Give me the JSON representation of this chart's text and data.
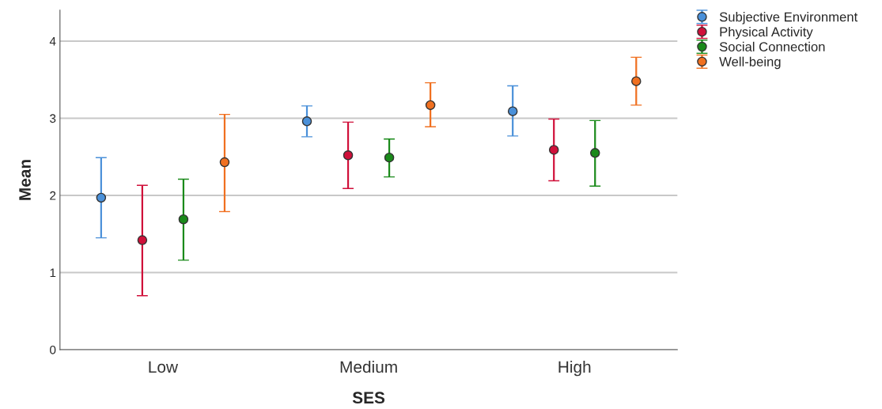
{
  "chart_data": {
    "type": "scatter",
    "xlabel": "SES",
    "ylabel": "Mean",
    "categories": [
      "Low",
      "Medium",
      "High"
    ],
    "series": [
      {
        "name": "Subjective Environment",
        "color": "#4a90d9",
        "values": [
          1.97,
          2.96,
          3.09
        ],
        "errors": [
          [
            1.45,
            2.49
          ],
          [
            2.76,
            3.16
          ],
          [
            2.77,
            3.42
          ]
        ]
      },
      {
        "name": "Physical Activity",
        "color": "#d0103a",
        "values": [
          1.42,
          2.52,
          2.59
        ],
        "errors": [
          [
            0.7,
            2.13
          ],
          [
            2.09,
            2.95
          ],
          [
            2.19,
            2.99
          ]
        ]
      },
      {
        "name": "Social Connection",
        "color": "#1a8a1a",
        "values": [
          1.69,
          2.49,
          2.55
        ],
        "errors": [
          [
            1.16,
            2.21
          ],
          [
            2.24,
            2.73
          ],
          [
            2.12,
            2.97
          ]
        ]
      },
      {
        "name": "Well-being",
        "color": "#f07020",
        "values": [
          2.43,
          3.17,
          3.48
        ],
        "errors": [
          [
            1.79,
            3.05
          ],
          [
            2.89,
            3.46
          ],
          [
            3.17,
            3.79
          ]
        ]
      }
    ],
    "ylim": [
      0,
      4.4
    ],
    "yticks": [
      0,
      1,
      2,
      3,
      4
    ],
    "grid": "y",
    "legend": "top right",
    "marker": "circle"
  }
}
